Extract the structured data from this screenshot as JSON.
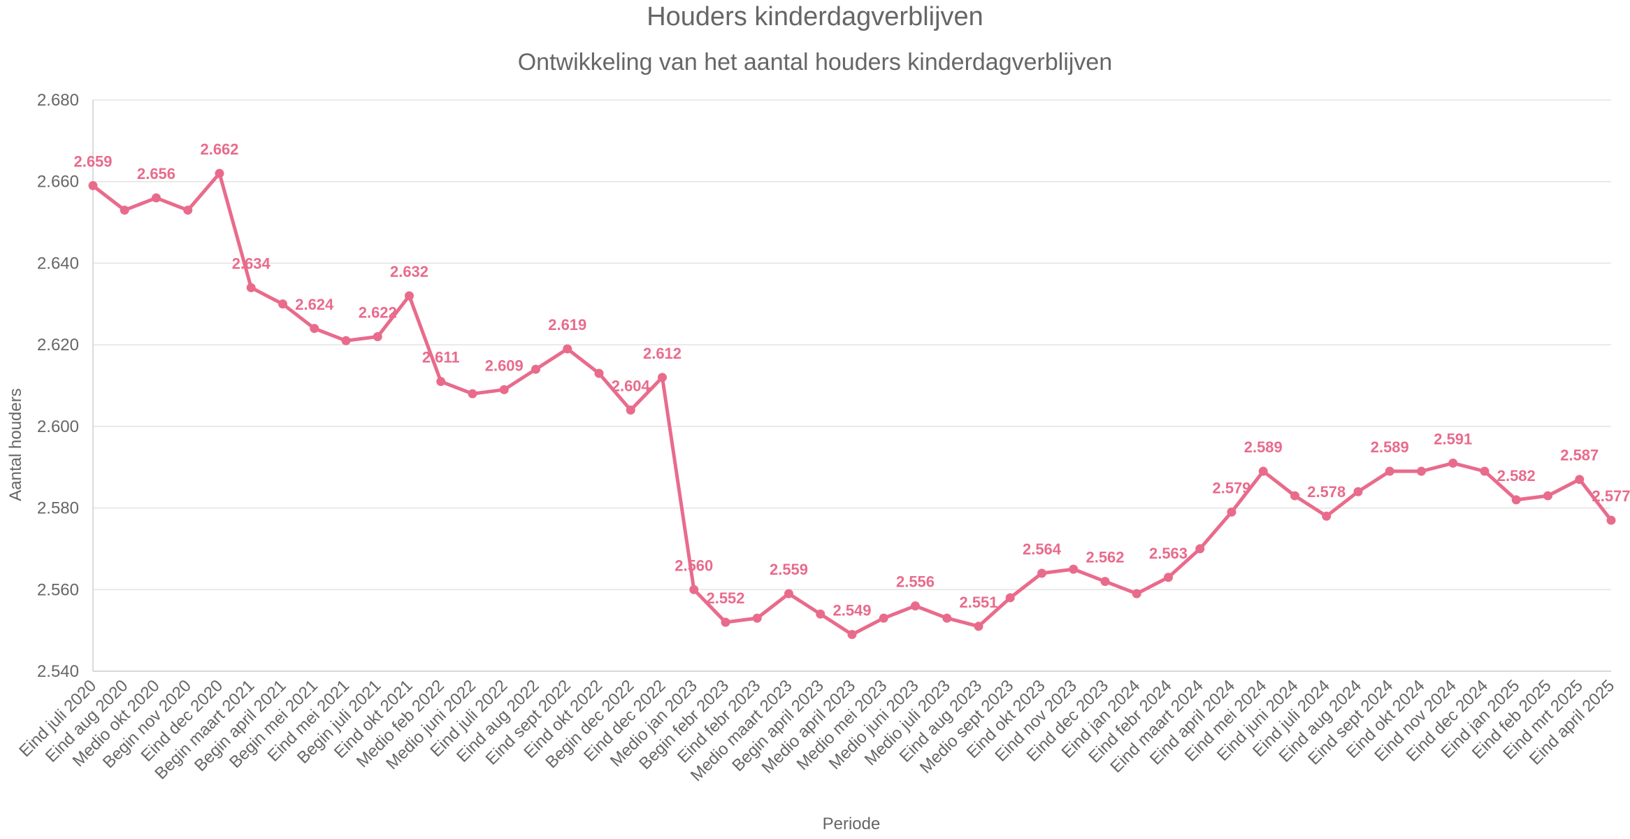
{
  "colors": {
    "series": "#e96b8c",
    "text": "#666666",
    "grid": "#e3e3e3"
  },
  "chart_data": {
    "type": "line",
    "title": "Houders kinderdagverblijven",
    "subtitle": "Ontwikkeling van het aantal houders kinderdagverblijven",
    "xlabel": "Periode",
    "ylabel": "Aantal houders",
    "ylim": [
      2540,
      2680
    ],
    "yticks": [
      "2.540",
      "2.560",
      "2.580",
      "2.600",
      "2.620",
      "2.640",
      "2.660",
      "2.680"
    ],
    "grid": true,
    "legend": "none",
    "categories": [
      "Eind juli 2020",
      "Eind aug 2020",
      "Medio okt 2020",
      "Begin nov 2020",
      "Eind dec 2020",
      "Begin maart 2021",
      "Begin april 2021",
      "Begin mei 2021",
      "Eind mei 2021",
      "Begin juli 2021",
      "Eind okt 2021",
      "Medio feb 2022",
      "Medio juni 2022",
      "Eind juli 2022",
      "Eind aug 2022",
      "Eind sept 2022",
      "Eind okt 2022",
      "Begin dec 2022",
      "Eind dec 2022",
      "Medio jan 2023",
      "Begin febr 2023",
      "Eind febr 2023",
      "Medio maart 2023",
      "Begin april 2023",
      "Medio april 2023",
      "Medio mei 2023",
      "Medio juni 2023",
      "Medio juli 2023",
      "Eind aug 2023",
      "Medio sept 2023",
      "Eind okt 2023",
      "Eind nov 2023",
      "Eind dec 2023",
      "Eind jan 2024",
      "Eind febr 2024",
      "Eind maart 2024",
      "Eind april 2024",
      "Eind mei 2024",
      "Eind juni 2024",
      "Eind juli 2024",
      "Eind aug 2024",
      "Eind sept 2024",
      "Eind okt 2024",
      "Eind nov 2024",
      "Eind dec 2024",
      "Eind jan 2025",
      "Eind feb 2025",
      "Eind mrt 2025",
      "Eind april 2025"
    ],
    "series": [
      {
        "values": [
          2659,
          2653,
          2656,
          2653,
          2662,
          2634,
          2630,
          2624,
          2621,
          2622,
          2632,
          2611,
          2608,
          2609,
          2614,
          2619,
          2613,
          2604,
          2612,
          2560,
          2552,
          2553,
          2559,
          2554,
          2549,
          2553,
          2556,
          2553,
          2551,
          2558,
          2564,
          2565,
          2562,
          2559,
          2563,
          2570,
          2579,
          2589,
          2583,
          2578,
          2584,
          2589,
          2589,
          2591,
          2589,
          2582,
          2583,
          2587,
          2577
        ],
        "data_labels": [
          {
            "index": 0,
            "text": "2.659"
          },
          {
            "index": 2,
            "text": "2.656"
          },
          {
            "index": 4,
            "text": "2.662"
          },
          {
            "index": 5,
            "text": "2.634"
          },
          {
            "index": 7,
            "text": "2.624"
          },
          {
            "index": 9,
            "text": "2.622"
          },
          {
            "index": 10,
            "text": "2.632"
          },
          {
            "index": 11,
            "text": "2.611"
          },
          {
            "index": 13,
            "text": "2.609"
          },
          {
            "index": 15,
            "text": "2.619"
          },
          {
            "index": 17,
            "text": "2.604"
          },
          {
            "index": 18,
            "text": "2.612"
          },
          {
            "index": 19,
            "text": "2.560"
          },
          {
            "index": 20,
            "text": "2.552"
          },
          {
            "index": 22,
            "text": "2.559"
          },
          {
            "index": 24,
            "text": "2.549"
          },
          {
            "index": 26,
            "text": "2.556"
          },
          {
            "index": 28,
            "text": "2.551"
          },
          {
            "index": 30,
            "text": "2.564"
          },
          {
            "index": 32,
            "text": "2.562"
          },
          {
            "index": 34,
            "text": "2.563"
          },
          {
            "index": 36,
            "text": "2.579"
          },
          {
            "index": 37,
            "text": "2.589"
          },
          {
            "index": 39,
            "text": "2.578"
          },
          {
            "index": 41,
            "text": "2.589"
          },
          {
            "index": 43,
            "text": "2.591"
          },
          {
            "index": 45,
            "text": "2.582"
          },
          {
            "index": 47,
            "text": "2.587"
          },
          {
            "index": 48,
            "text": "2.577"
          }
        ]
      }
    ]
  }
}
